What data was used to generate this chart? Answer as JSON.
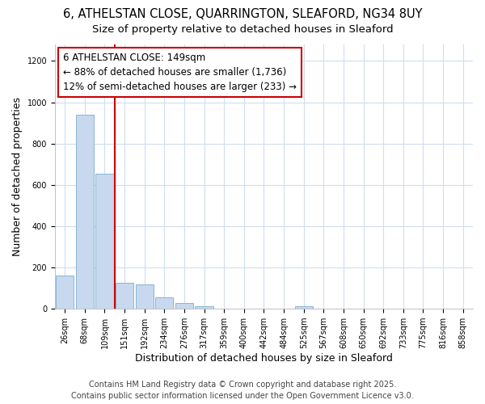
{
  "title_line1": "6, ATHELSTAN CLOSE, QUARRINGTON, SLEAFORD, NG34 8UY",
  "title_line2": "Size of property relative to detached houses in Sleaford",
  "xlabel": "Distribution of detached houses by size in Sleaford",
  "ylabel": "Number of detached properties",
  "footer_line1": "Contains HM Land Registry data © Crown copyright and database right 2025.",
  "footer_line2": "Contains public sector information licensed under the Open Government Licence v3.0.",
  "categories": [
    "26sqm",
    "68sqm",
    "109sqm",
    "151sqm",
    "192sqm",
    "234sqm",
    "276sqm",
    "317sqm",
    "359sqm",
    "400sqm",
    "442sqm",
    "484sqm",
    "525sqm",
    "567sqm",
    "608sqm",
    "650sqm",
    "692sqm",
    "733sqm",
    "775sqm",
    "816sqm",
    "858sqm"
  ],
  "values": [
    160,
    940,
    655,
    125,
    120,
    55,
    28,
    12,
    0,
    0,
    0,
    0,
    12,
    0,
    0,
    0,
    0,
    0,
    0,
    0,
    0
  ],
  "bar_color": "#c8d8ee",
  "bar_edge_color": "#7aaecc",
  "vline_color": "#cc0000",
  "annotation_text": "6 ATHELSTAN CLOSE: 149sqm\n← 88% of detached houses are smaller (1,736)\n12% of semi-detached houses are larger (233) →",
  "annotation_box_color": "#cc0000",
  "ylim": [
    0,
    1280
  ],
  "yticks": [
    0,
    200,
    400,
    600,
    800,
    1000,
    1200
  ],
  "background_color": "#ffffff",
  "grid_color": "#d0ddf0",
  "title_fontsize": 10.5,
  "subtitle_fontsize": 9.5,
  "axis_label_fontsize": 9,
  "tick_fontsize": 7,
  "footer_fontsize": 7,
  "annotation_fontsize": 8.5
}
